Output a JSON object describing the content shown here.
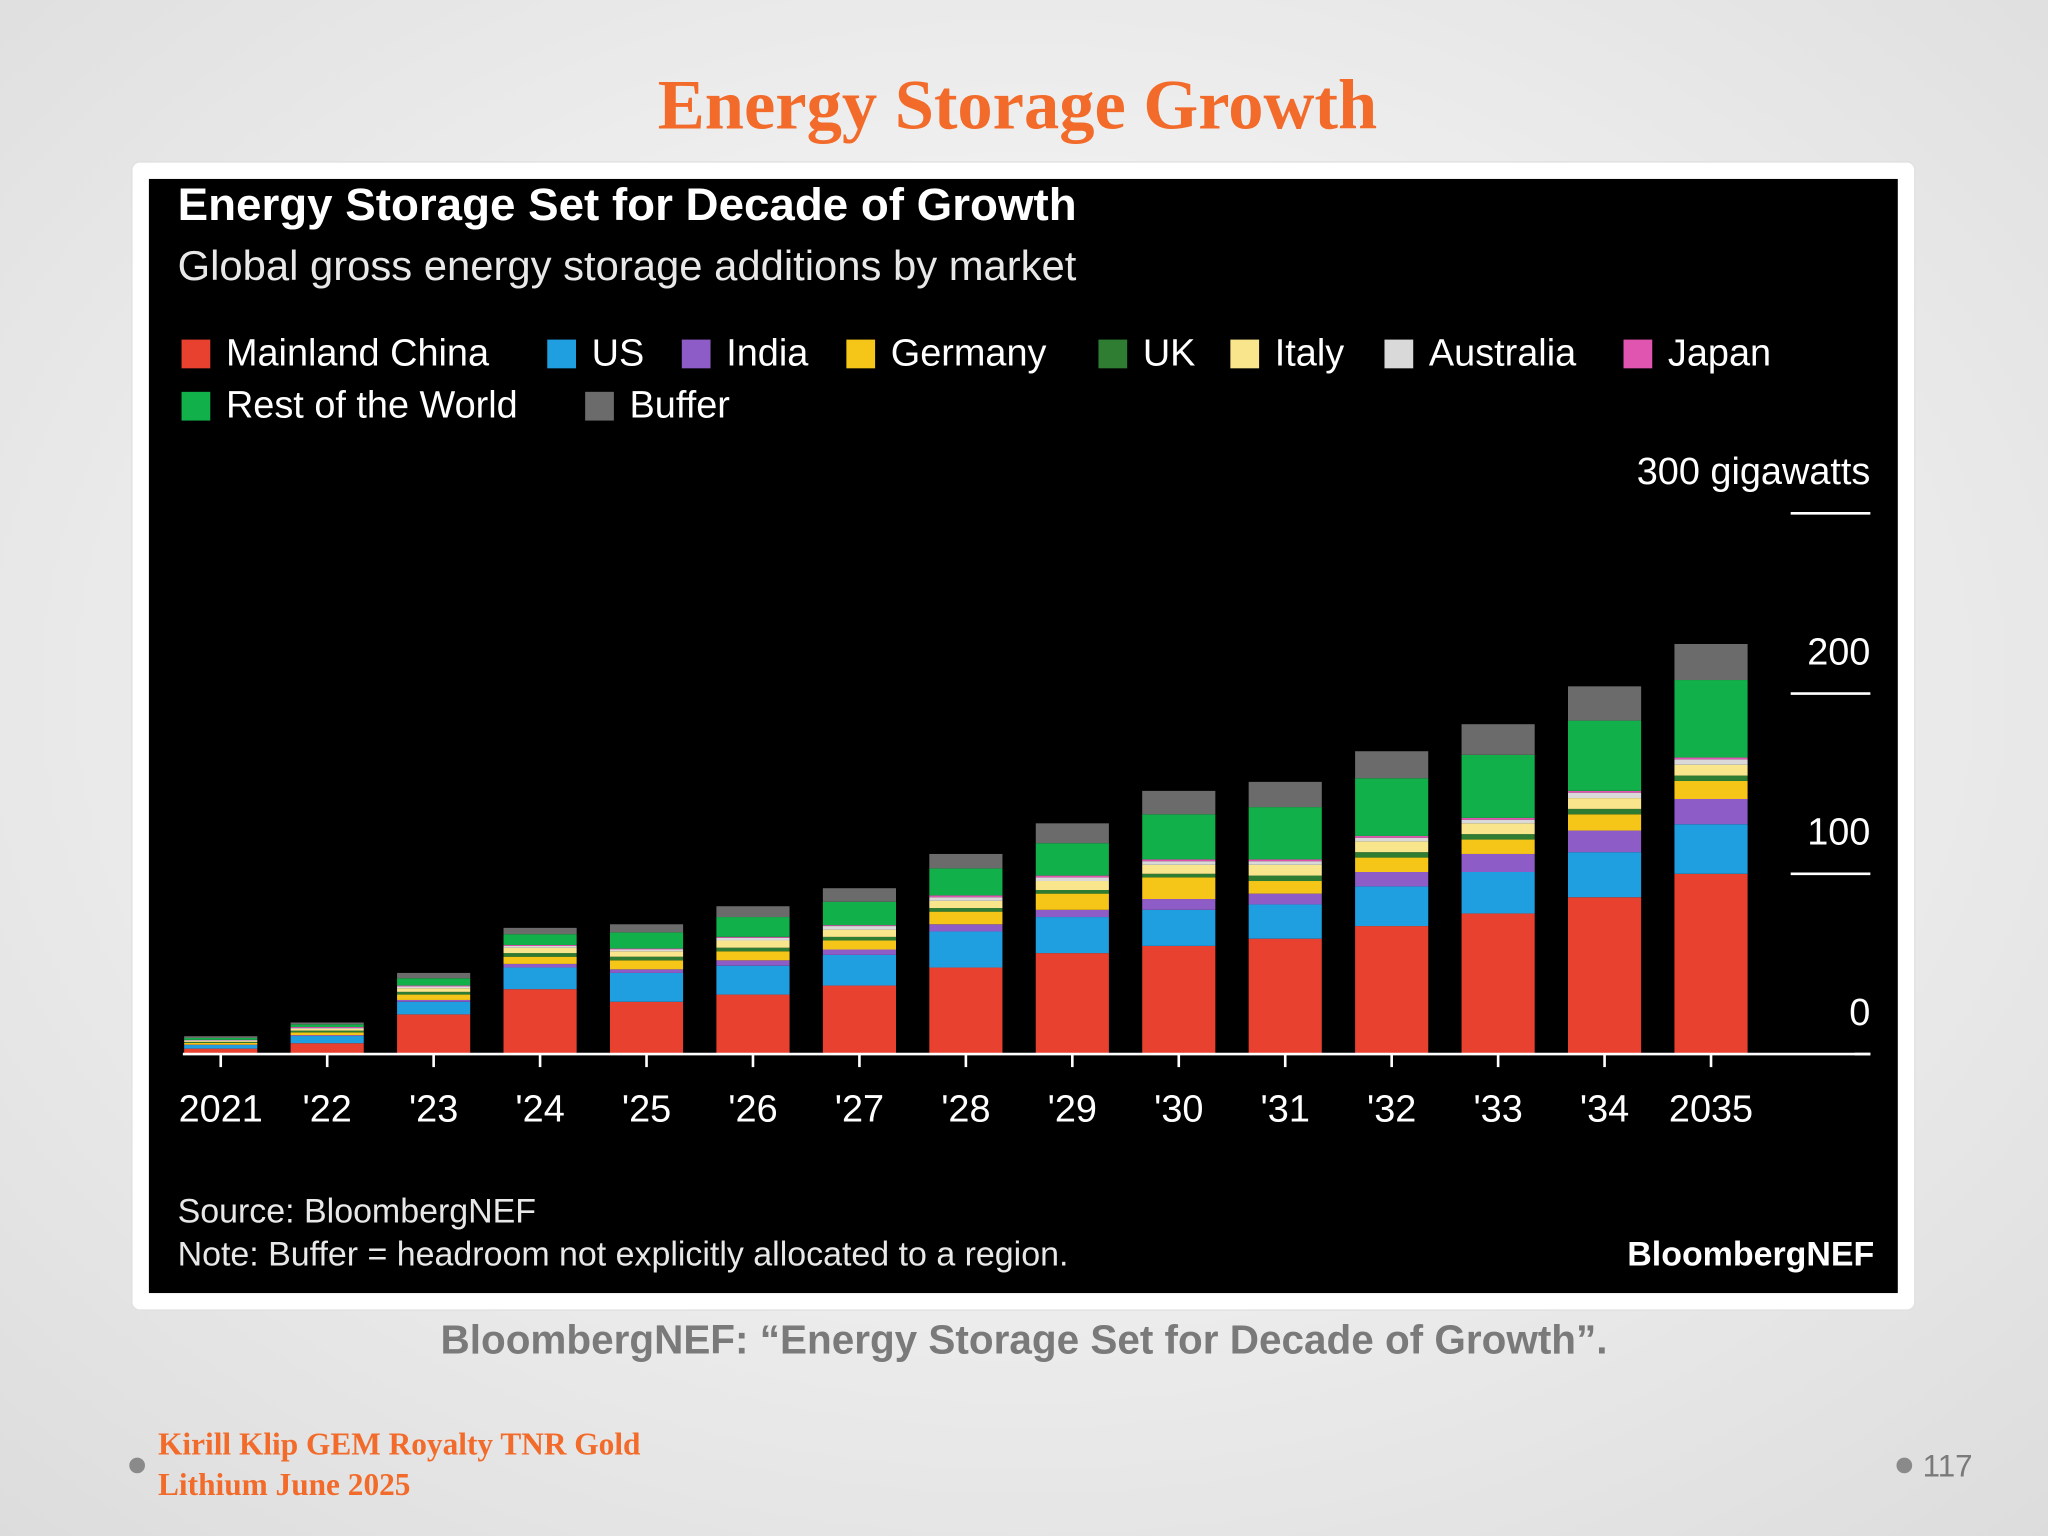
{
  "slide": {
    "title": "Energy Storage Growth",
    "caption": "BloombergNEF: “Energy Storage Set for Decade of Growth”.",
    "footer": [
      "Kirill Klip GEM Royalty TNR Gold",
      "Lithium June 2025"
    ],
    "page_number": "117"
  },
  "chart_data": {
    "type": "stacked_bar",
    "title": "Energy Storage Set for Decade of Growth",
    "subtitle": "Global gross energy storage additions by market",
    "source": "Source: BloombergNEF",
    "note": "Note: Buffer = headroom not explicitly allocated to a region.",
    "logo": "BloombergNEF",
    "categories": [
      "2021",
      "'22",
      "'23",
      "'24",
      "'25",
      "'26",
      "'27",
      "'28",
      "'29",
      "'30",
      "'31",
      "'32",
      "'33",
      "'34",
      "2035"
    ],
    "series": [
      {
        "name": "Mainland China",
        "color": "#e8412f",
        "values": [
          3,
          6,
          22,
          36,
          29,
          33,
          38,
          48,
          56,
          60,
          64,
          71,
          78,
          87,
          100
        ]
      },
      {
        "name": "US",
        "color": "#1f9ee0",
        "values": [
          2,
          4,
          7,
          12,
          16,
          16,
          17,
          20,
          20,
          20,
          19,
          22,
          23,
          25,
          27.5
        ]
      },
      {
        "name": "India",
        "color": "#8e5cc6",
        "values": [
          0.2,
          0.5,
          1,
          2,
          2,
          3,
          3,
          4,
          4,
          6,
          6,
          8,
          10,
          12,
          14
        ]
      },
      {
        "name": "Germany",
        "color": "#f5c518",
        "values": [
          1,
          1.5,
          3,
          4,
          5,
          5,
          5,
          7,
          9,
          12,
          7,
          8,
          8,
          9,
          10
        ]
      },
      {
        "name": "UK",
        "color": "#2e7d32",
        "values": [
          0.5,
          1,
          1.5,
          2,
          2,
          2,
          2,
          2,
          2,
          2,
          3,
          3,
          3,
          3,
          3
        ]
      },
      {
        "name": "Italy",
        "color": "#f8e58c",
        "values": [
          0.5,
          1,
          2,
          3,
          3,
          4,
          4,
          4,
          5,
          5,
          6,
          6,
          6,
          6,
          6
        ]
      },
      {
        "name": "Australia",
        "color": "#d9d9d9",
        "values": [
          0.5,
          0.5,
          1,
          1,
          1,
          1.5,
          2,
          2,
          2,
          2,
          2,
          2,
          2,
          3,
          3
        ]
      },
      {
        "name": "Japan",
        "color": "#e055b0",
        "values": [
          0.2,
          0.5,
          0.5,
          0.5,
          0.5,
          0.5,
          0.5,
          1,
          1,
          1,
          1,
          1,
          1,
          1,
          1
        ]
      },
      {
        "name": "Rest of the World",
        "color": "#12b04a",
        "values": [
          1,
          1.5,
          4,
          6,
          9,
          11,
          13,
          15,
          18,
          25,
          29,
          32,
          35,
          39,
          43
        ]
      },
      {
        "name": "Buffer",
        "color": "#6b6b6b",
        "values": [
          1,
          1,
          3,
          3.5,
          4.5,
          6,
          7.5,
          8,
          11,
          13,
          14,
          15,
          17,
          19,
          20
        ]
      }
    ],
    "ylim": [
      0,
      300
    ],
    "yticks": [
      0,
      100,
      200,
      {
        "value": 300,
        "label": "300 gigawatts"
      }
    ]
  }
}
